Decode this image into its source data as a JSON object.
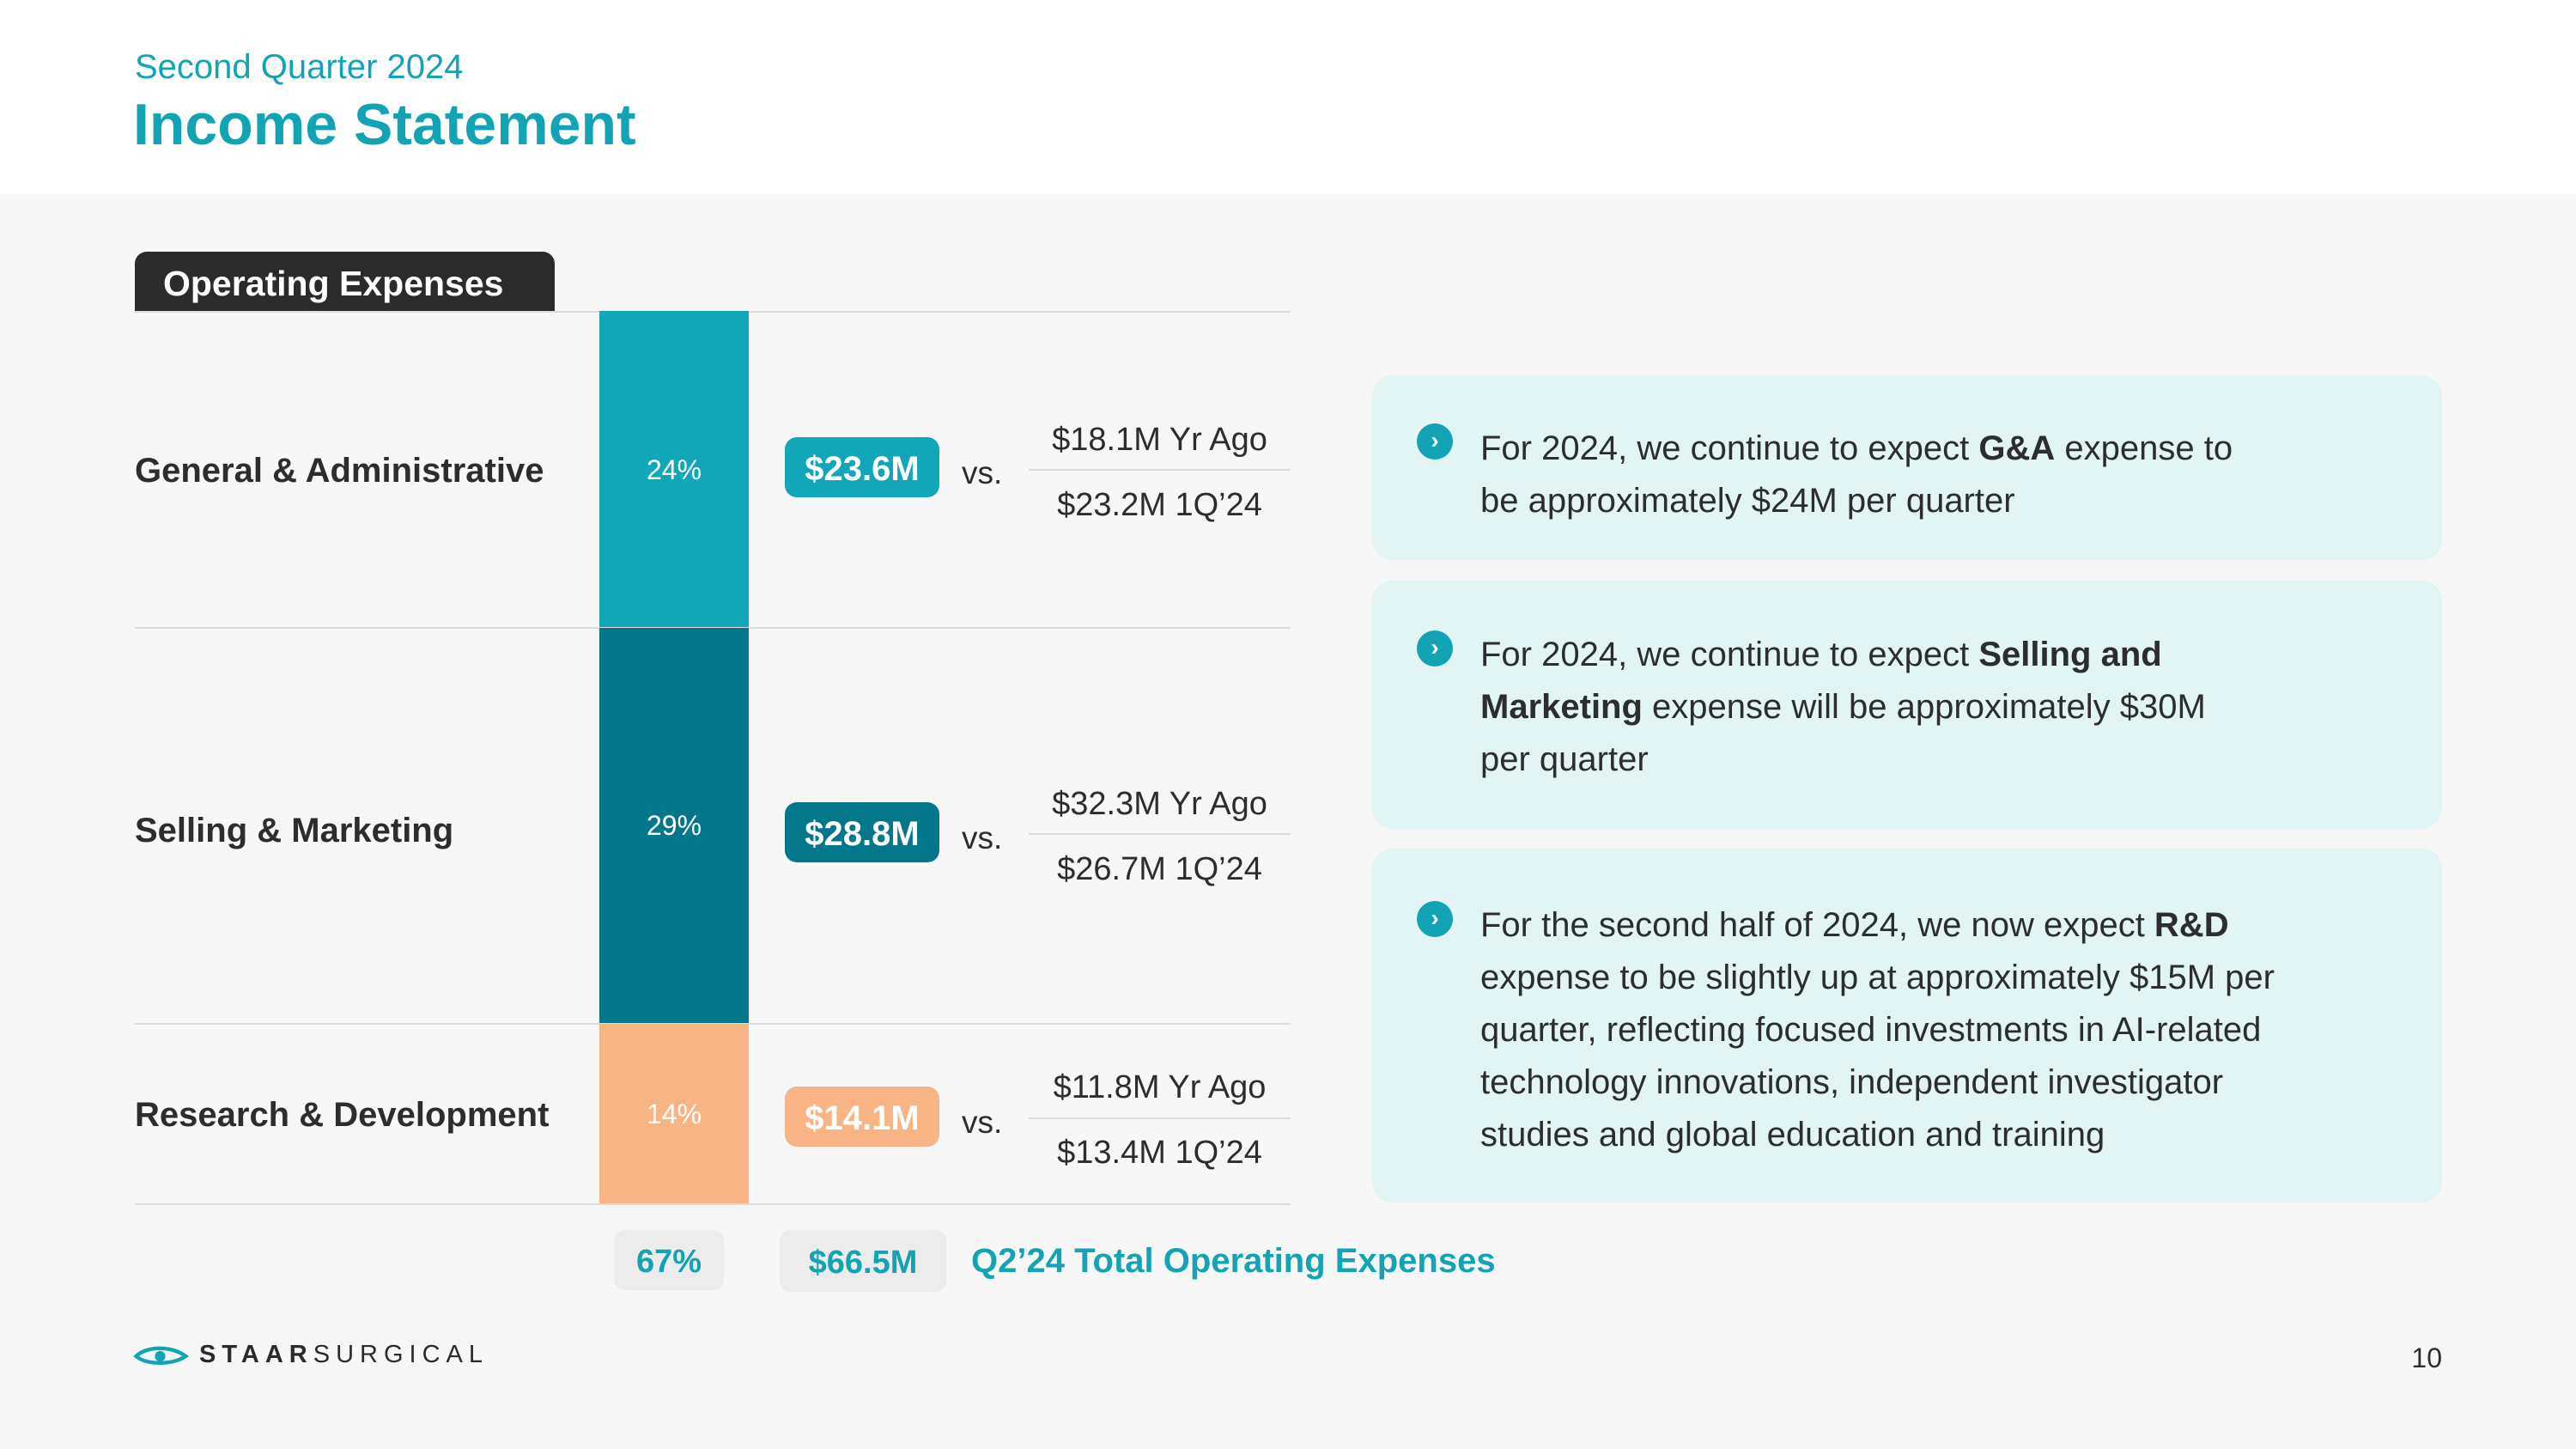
{
  "header": {
    "subtitle": "Second Quarter 2024",
    "title": "Income Statement"
  },
  "opex": {
    "tab_label": "Operating Expenses",
    "rows": [
      {
        "label": "General & Administrative",
        "pct": "24%",
        "amount": "$23.6M",
        "vs": "vs.",
        "yr_ago": "$18.1M Yr Ago",
        "prior_q": "$23.2M 1Q’24",
        "color": "#12a7b8"
      },
      {
        "label": "Selling & Marketing",
        "pct": "29%",
        "amount": "$28.8M",
        "vs": "vs.",
        "yr_ago": "$32.3M Yr Ago",
        "prior_q": "$26.7M 1Q’24",
        "color": "#03778a"
      },
      {
        "label": "Research & Development",
        "pct": "14%",
        "amount": "$14.1M",
        "vs": "vs.",
        "yr_ago": "$11.8M Yr Ago",
        "prior_q": "$13.4M 1Q’24",
        "color": "#f9b486"
      }
    ],
    "total": {
      "pct": "67%",
      "amount": "$66.5M",
      "label": "Q2’24 Total Operating Expenses"
    }
  },
  "outlook": [
    {
      "pre": "For 2024, we continue to expect ",
      "bold": "G&A",
      "post1": " expense to",
      "post2": "be approximately $24M per quarter"
    },
    {
      "pre": "For 2024, we continue to expect ",
      "bold": "Selling and",
      "bold2": "Marketing",
      "post1": " expense will be approximately $30M",
      "post2": "per quarter"
    },
    {
      "pre": "For the second half of 2024, we now expect ",
      "bold": "R&D",
      "line2": "expense to be slightly up at approximately $15M per",
      "line3": "quarter, reflecting focused investments in AI-related",
      "line4": "technology innovations, independent investigator",
      "line5": "studies and global education and training"
    }
  ],
  "footer": {
    "logo_bold": "STAAR",
    "logo_light": "SURGICAL",
    "page_number": "10"
  },
  "colors": {
    "accent": "#12a3b4",
    "ga": "#12a7b8",
    "sm": "#03778a",
    "rd": "#f9b486",
    "card_bg": "#e3f4f4"
  },
  "icons": {
    "bullet": "chevron-right-icon",
    "logo": "eye-logo-icon"
  }
}
